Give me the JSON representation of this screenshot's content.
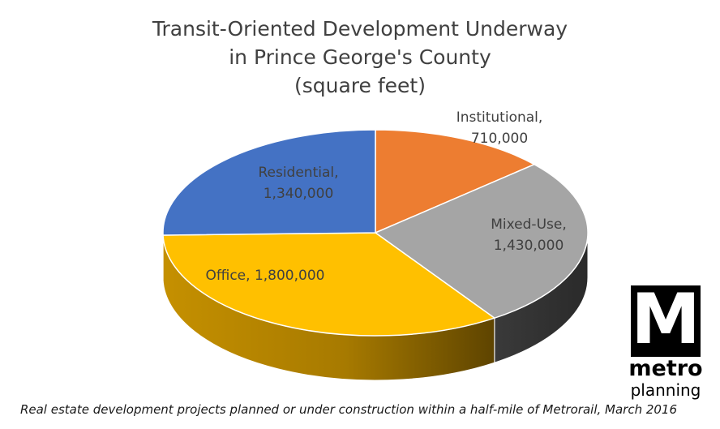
{
  "chart_data": {
    "type": "pie",
    "style": "3d",
    "title_lines": [
      "Transit-Oriented Development Underway",
      "in Prince George's County",
      "(square feet)"
    ],
    "slices": [
      {
        "name": "Institutional",
        "value": 710000,
        "label": "710,000",
        "color": "#ED7D31"
      },
      {
        "name": "Mixed-Use",
        "value": 1430000,
        "label": "1,430,000",
        "color": "#A5A5A5"
      },
      {
        "name": "Office",
        "value": 1800000,
        "label": "1,800,000",
        "color": "#FFC000"
      },
      {
        "name": "Residential",
        "value": 1340000,
        "label": "1,340,000",
        "color": "#4472C4"
      }
    ],
    "caption": "Real estate development projects planned or under construction within a half-mile of Metrorail, March 2016"
  },
  "logo": {
    "letter": "M",
    "word": "metro",
    "subword": "planning"
  }
}
